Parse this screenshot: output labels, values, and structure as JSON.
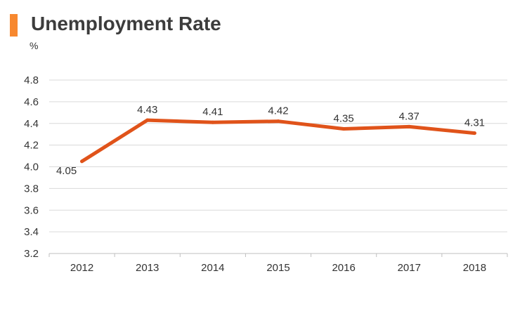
{
  "header": {
    "title": "Unemployment Rate",
    "accent_color": "#f7882f"
  },
  "chart_data": {
    "type": "line",
    "title": "Unemployment Rate",
    "unit_label": "%",
    "xlabel": "",
    "ylabel": "",
    "categories": [
      "2012",
      "2013",
      "2014",
      "2015",
      "2016",
      "2017",
      "2018"
    ],
    "series": [
      {
        "values": [
          4.05,
          4.43,
          4.41,
          4.42,
          4.35,
          4.37,
          4.31
        ],
        "color": "#e0531a"
      }
    ],
    "data_labels": [
      "4.05",
      "4.43",
      "4.41",
      "4.42",
      "4.35",
      "4.37",
      "4.31"
    ],
    "ylim": [
      3.2,
      4.8
    ],
    "y_ticks": [
      "3.2",
      "3.4",
      "3.6",
      "3.8",
      "4.0",
      "4.2",
      "4.4",
      "4.6",
      "4.8"
    ],
    "grid": true,
    "legend": "none"
  }
}
